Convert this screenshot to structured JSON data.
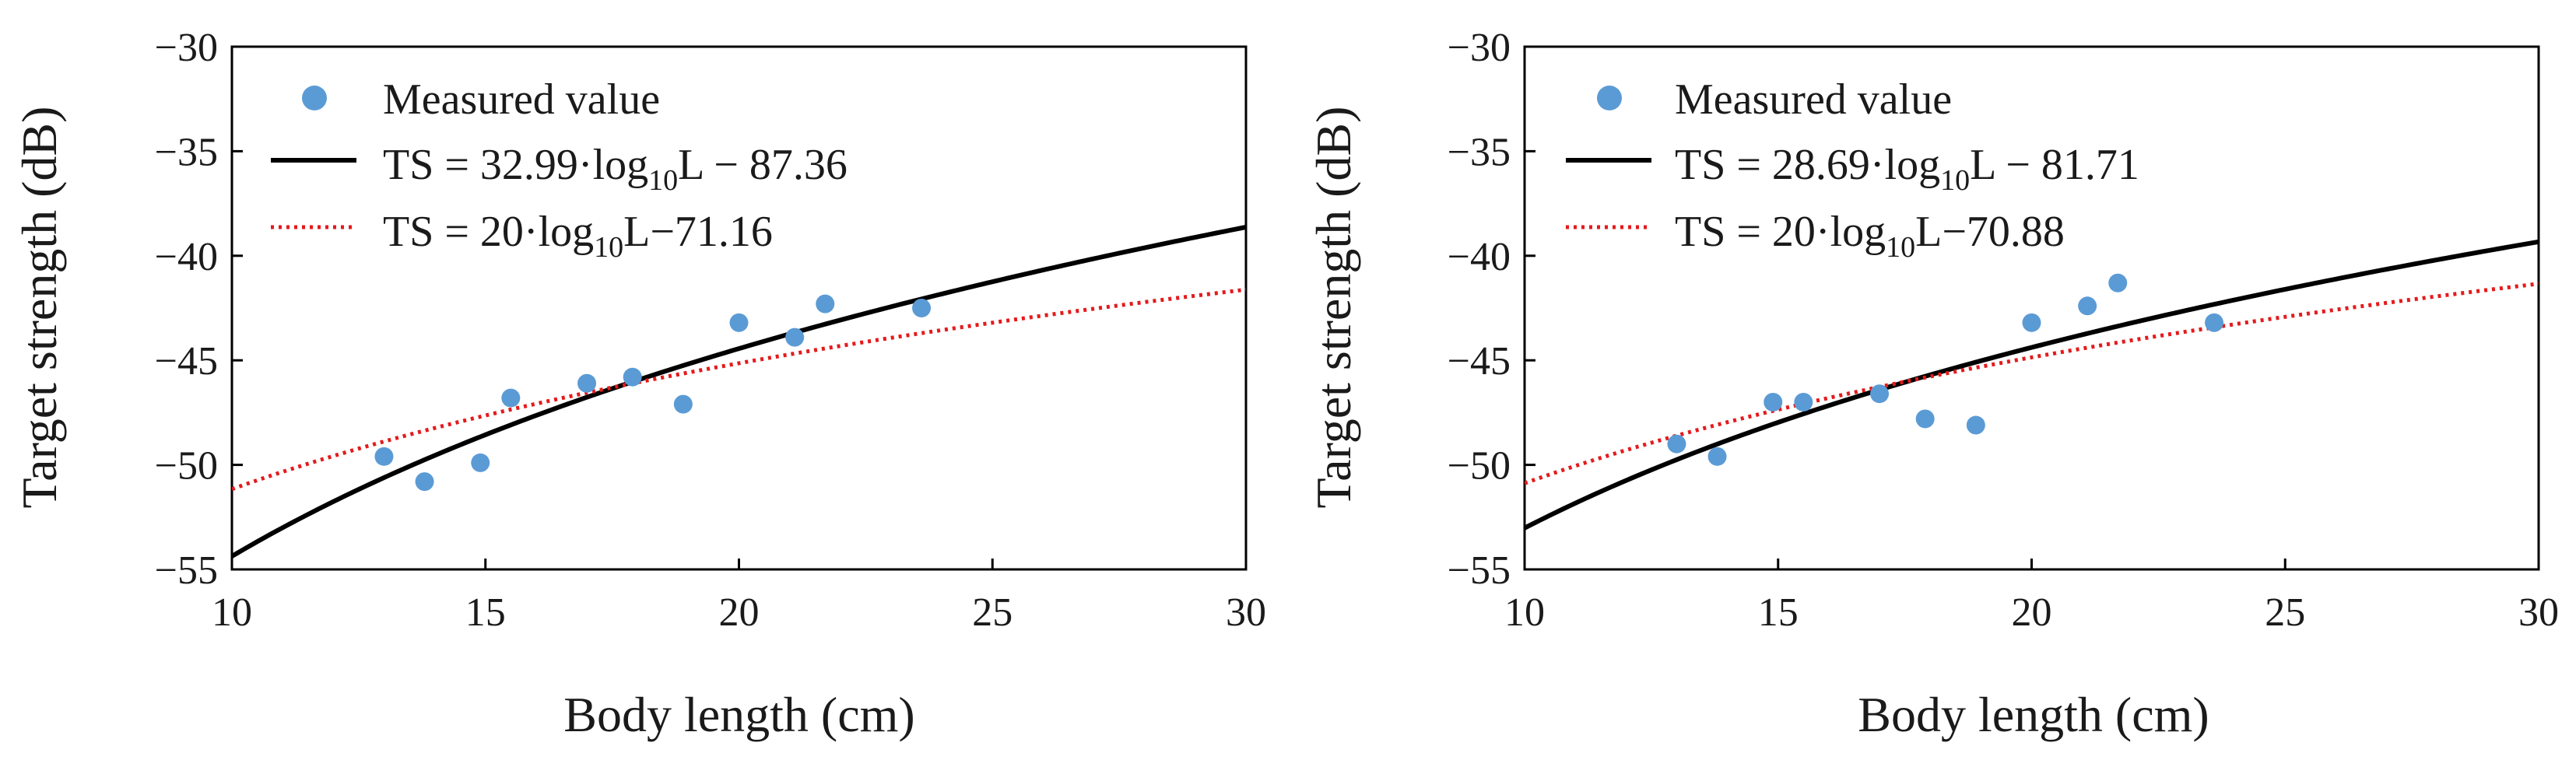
{
  "chart_data": [
    {
      "type": "scatter",
      "xlabel": "Body length (cm)",
      "ylabel": "Target strength (dB)",
      "xlim": [
        10,
        30
      ],
      "ylim": [
        -55,
        -30
      ],
      "xticks": [
        10,
        15,
        20,
        25,
        30
      ],
      "yticks": [
        -55,
        -50,
        -45,
        -40,
        -35,
        -30
      ],
      "xtick_labels": [
        "10",
        "15",
        "20",
        "25",
        "30"
      ],
      "ytick_labels": [
        "−55",
        "−50",
        "−45",
        "−40",
        "−35",
        "−30"
      ],
      "grid": false,
      "legend_position": "top-left",
      "legend": {
        "measured": "Measured value",
        "fit_prefix": "TS = 32.99·log",
        "fit_suffix": "L − 87.36",
        "ref_prefix": "TS = 20·log",
        "ref_suffix": "L−71.16",
        "log_base": "10"
      },
      "series": [
        {
          "name": "Measured value",
          "kind": "points",
          "color": "#5b9bd5",
          "points": [
            [
              13.0,
              -49.6
            ],
            [
              13.8,
              -50.8
            ],
            [
              14.9,
              -49.9
            ],
            [
              15.5,
              -46.8
            ],
            [
              17.0,
              -46.1
            ],
            [
              17.9,
              -45.8
            ],
            [
              18.9,
              -47.1
            ],
            [
              20.0,
              -43.2
            ],
            [
              21.1,
              -43.9
            ],
            [
              21.7,
              -42.3
            ],
            [
              23.6,
              -42.5
            ]
          ]
        },
        {
          "name": "TS = 32.99·log10L − 87.36",
          "kind": "curve",
          "color": "#000000",
          "style": "solid",
          "slope": 32.99,
          "intercept": -87.36
        },
        {
          "name": "TS = 20·log10L−71.16",
          "kind": "curve",
          "color": "#e41a1c",
          "style": "dotted",
          "slope": 20,
          "intercept": -71.16
        }
      ]
    },
    {
      "type": "scatter",
      "xlabel": "Body length (cm)",
      "ylabel": "Target strength (dB)",
      "xlim": [
        10,
        30
      ],
      "ylim": [
        -55,
        -30
      ],
      "xticks": [
        10,
        15,
        20,
        25,
        30
      ],
      "yticks": [
        -55,
        -50,
        -45,
        -40,
        -35,
        -30
      ],
      "xtick_labels": [
        "10",
        "15",
        "20",
        "25",
        "30"
      ],
      "ytick_labels": [
        "−55",
        "−50",
        "−45",
        "−40",
        "−35",
        "−30"
      ],
      "grid": false,
      "legend_position": "top-left",
      "legend": {
        "measured": "Measured value",
        "fit_prefix": "TS = 28.69·log",
        "fit_suffix": "L − 81.71",
        "ref_prefix": "TS = 20·log",
        "ref_suffix": "L−70.88",
        "log_base": "10"
      },
      "series": [
        {
          "name": "Measured value",
          "kind": "points",
          "color": "#5b9bd5",
          "points": [
            [
              13.0,
              -49.0
            ],
            [
              13.8,
              -49.6
            ],
            [
              14.9,
              -47.0
            ],
            [
              15.5,
              -47.0
            ],
            [
              17.0,
              -46.6
            ],
            [
              17.9,
              -47.8
            ],
            [
              18.9,
              -48.1
            ],
            [
              20.0,
              -43.2
            ],
            [
              21.1,
              -42.4
            ],
            [
              21.7,
              -41.3
            ],
            [
              23.6,
              -43.2
            ]
          ]
        },
        {
          "name": "TS = 28.69·log10L − 81.71",
          "kind": "curve",
          "color": "#000000",
          "style": "solid",
          "slope": 28.69,
          "intercept": -81.71
        },
        {
          "name": "TS = 20·log10L−70.88",
          "kind": "curve",
          "color": "#e41a1c",
          "style": "dotted",
          "slope": 20,
          "intercept": -70.88
        }
      ]
    }
  ]
}
